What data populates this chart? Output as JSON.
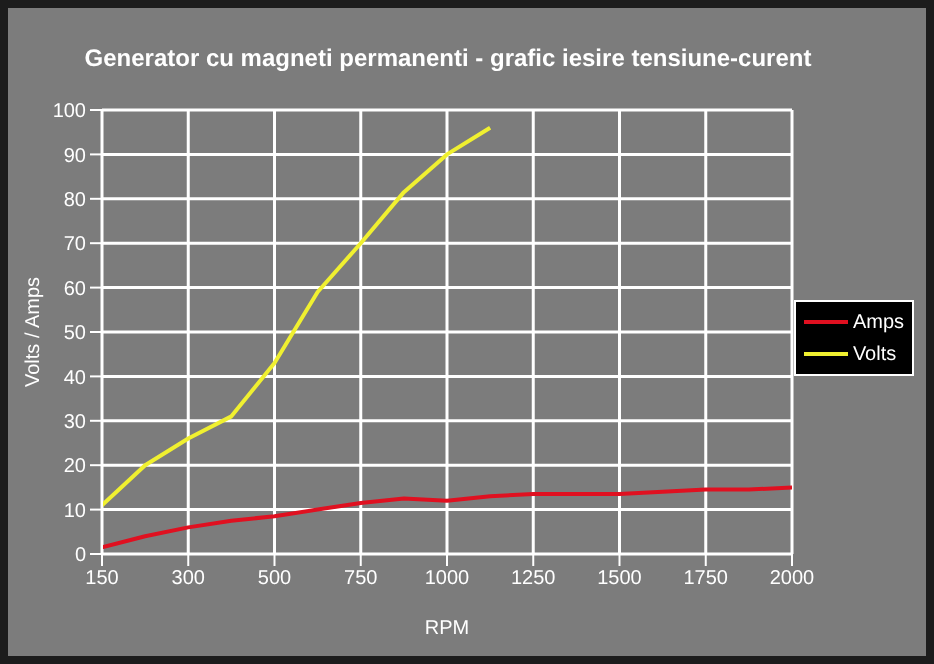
{
  "chart_data": {
    "type": "line",
    "title": "Generator cu magneti permanenti - grafic iesire tensiune-curent",
    "xlabel": "RPM",
    "ylabel": "Volts / Amps",
    "categories": [
      "150",
      null,
      "300",
      null,
      "500",
      null,
      "750",
      null,
      "1000",
      null,
      "1250",
      null,
      "1500",
      null,
      "1750",
      null,
      "2000"
    ],
    "series": [
      {
        "name": "Amps",
        "color": "#e01020",
        "values": [
          1.5,
          4,
          6,
          7.5,
          8.5,
          10,
          11.5,
          12.5,
          12,
          13,
          13.5,
          13.5,
          13.5,
          14,
          14.5,
          14.5,
          15
        ]
      },
      {
        "name": "Volts",
        "color": "#f0f030",
        "values": [
          11,
          20,
          26,
          31,
          43,
          59,
          70,
          81.5,
          90,
          96,
          null,
          null,
          null,
          null,
          null,
          null,
          null
        ]
      }
    ],
    "ylim": [
      0,
      100
    ],
    "yticks": [
      0,
      10,
      20,
      30,
      40,
      50,
      60,
      70,
      80,
      90,
      100
    ],
    "grid": true,
    "legend": "right",
    "marker": "none",
    "line_style": "solid"
  }
}
